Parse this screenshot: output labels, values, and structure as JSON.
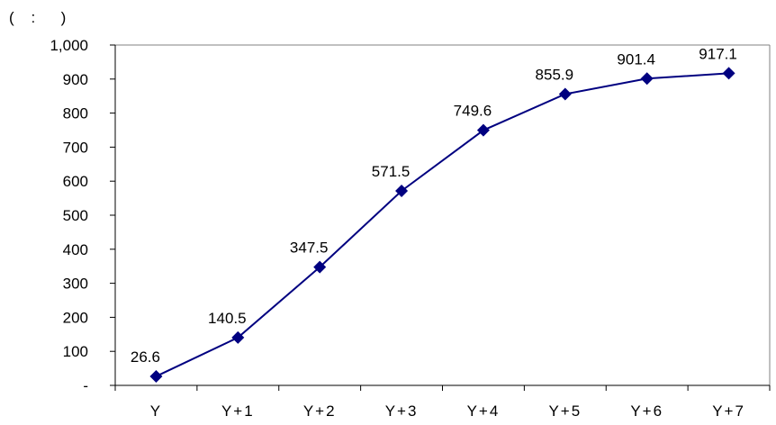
{
  "unit_note": "(    :      )",
  "colors": {
    "series": "#000080",
    "axis": "#000000",
    "text": "#000000",
    "background": "#ffffff"
  },
  "chart_data": {
    "type": "line",
    "title": "",
    "xlabel": "",
    "ylabel": "",
    "categories": [
      "Y",
      "Y+1",
      "Y+2",
      "Y+3",
      "Y+4",
      "Y+5",
      "Y+6",
      "Y+7"
    ],
    "series": [
      {
        "values": [
          26.6,
          140.5,
          347.5,
          571.5,
          749.6,
          855.9,
          901.4,
          917.1
        ],
        "marker": "diamond"
      }
    ],
    "data_labels": [
      "26.6",
      "140.5",
      "347.5",
      "571.5",
      "749.6",
      "855.9",
      "901.4",
      "917.1"
    ],
    "ylim": [
      0,
      1000
    ],
    "yticks": [
      0,
      100,
      200,
      300,
      400,
      500,
      600,
      700,
      800,
      900,
      1000
    ],
    "ytick_labels": [
      "-",
      "100",
      "200",
      "300",
      "400",
      "500",
      "600",
      "700",
      "800",
      "900",
      "1,000"
    ],
    "grid": false,
    "legend": "none"
  }
}
